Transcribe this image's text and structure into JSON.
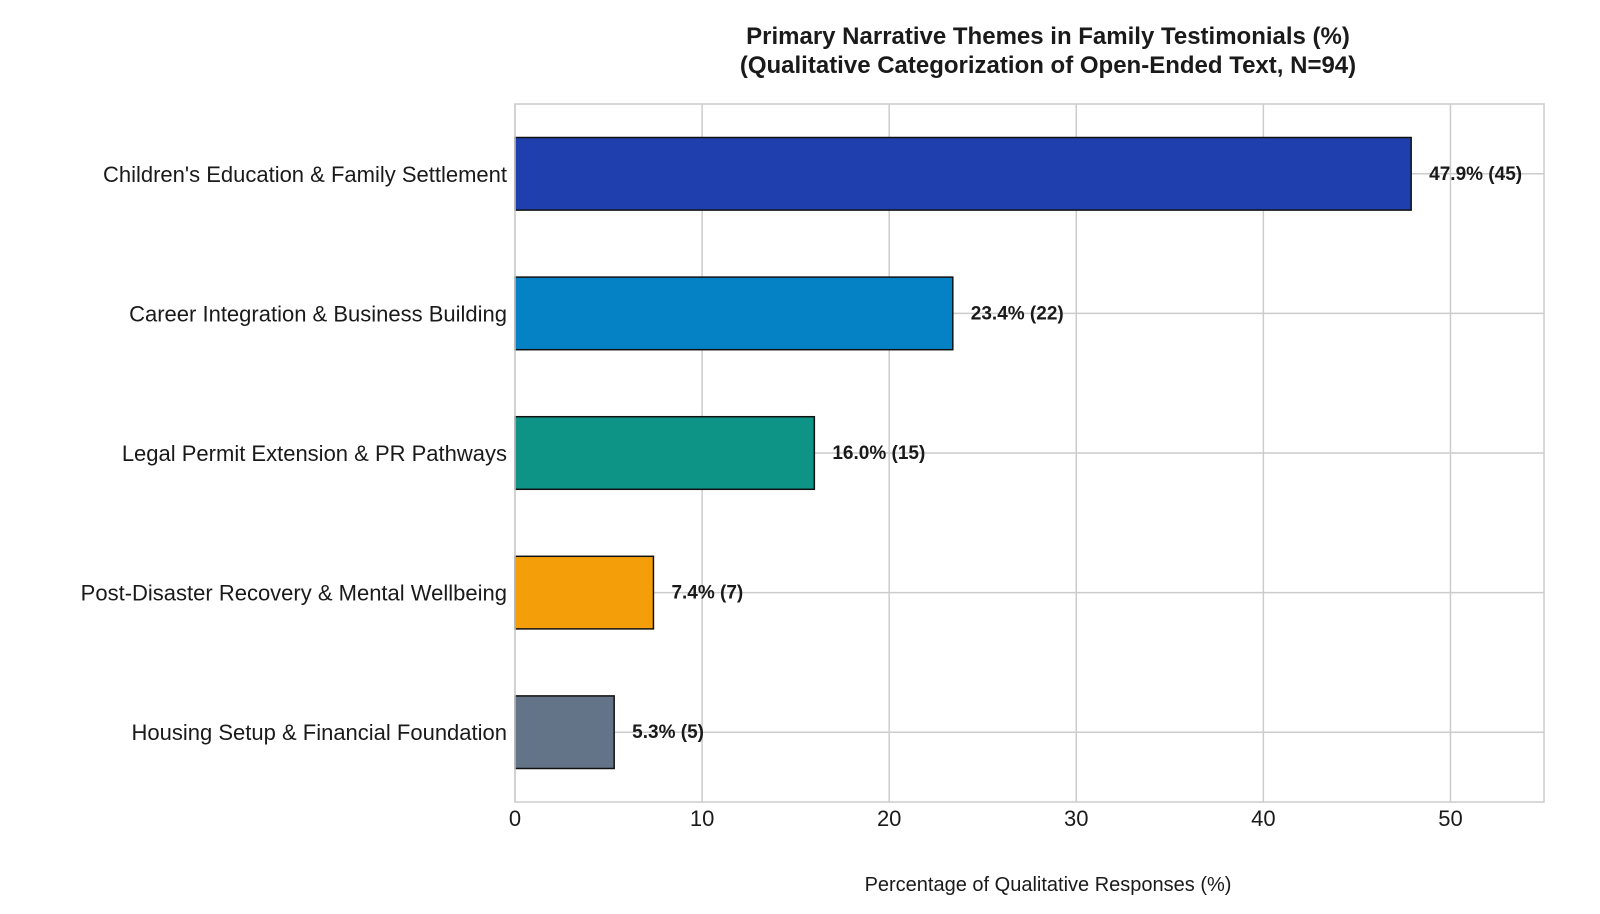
{
  "chart_data": {
    "type": "bar",
    "orientation": "horizontal",
    "title_lines": [
      "Primary Narrative Themes in Family Testimonials (%)",
      "(Qualitative Categorization of Open-Ended Text, N=94)"
    ],
    "xlabel": "Percentage of Qualitative Responses (%)",
    "ylabel": "",
    "xlim": [
      0,
      55
    ],
    "xticks": [
      0,
      10,
      20,
      30,
      40,
      50
    ],
    "grid": true,
    "categories": [
      "Children's Education & Family Settlement",
      "Career Integration & Business Building",
      "Legal Permit Extension & PR Pathways",
      "Post-Disaster Recovery & Mental Wellbeing",
      "Housing Setup & Financial Foundation"
    ],
    "values": [
      47.9,
      23.4,
      16.0,
      7.4,
      5.3
    ],
    "counts": [
      45,
      22,
      15,
      7,
      5
    ],
    "value_labels": [
      "47.9% (45)",
      "23.4% (22)",
      "16.0% (15)",
      "7.4% (7)",
      "5.3% (5)"
    ],
    "colors": [
      "#1f3fae",
      "#0582c6",
      "#0e9486",
      "#f49f0a",
      "#637388"
    ]
  }
}
